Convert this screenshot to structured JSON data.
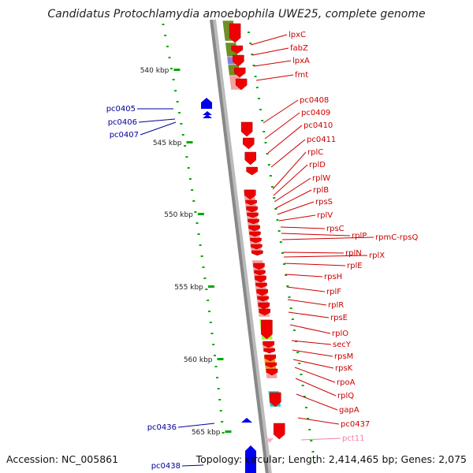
{
  "title": "Candidatus Protochlamydia amoebophila UWE25, complete genome",
  "footer": {
    "accession": "Accession: NC_005861",
    "topology": "Topology: circular; Length: 2,414,465 bp; Genes: 2,075"
  },
  "colors": {
    "forward_gene": "#ee0000",
    "reverse_gene": "#0000ee",
    "forward_label": "#cc0000",
    "reverse_label": "#000099",
    "rna_label": "#f47fa4",
    "backbone": "#888888",
    "tick": "#00aa00"
  },
  "axis": {
    "unit": "kbp",
    "ticks": [
      {
        "label": "540 kbp",
        "value": 540
      },
      {
        "label": "545 kbp",
        "value": 545
      },
      {
        "label": "550 kbp",
        "value": 550
      },
      {
        "label": "555 kbp",
        "value": 555
      },
      {
        "label": "560 kbp",
        "value": 560
      },
      {
        "label": "565 kbp",
        "value": 565
      }
    ]
  },
  "genes_forward": [
    "lpxC",
    "fabZ",
    "lpxA",
    "fmt",
    "pc0408",
    "pc0409",
    "pc0410",
    "pc0411",
    "rplC",
    "rplD",
    "rplW",
    "rplB",
    "rpsS",
    "rplV",
    "rpsC",
    "rplP",
    "rpmC-rpsQ",
    "rplN",
    "rplX",
    "rplE",
    "rpsH",
    "rplF",
    "rplR",
    "rpsE",
    "rplO",
    "secY",
    "rpsM",
    "rpsK",
    "rpoA",
    "rplQ",
    "gapA",
    "pc0437"
  ],
  "genes_reverse": [
    "pc0405",
    "pc0406",
    "pc0407",
    "pc0436",
    "pc0438"
  ],
  "rna_genes": [
    "pct11"
  ]
}
